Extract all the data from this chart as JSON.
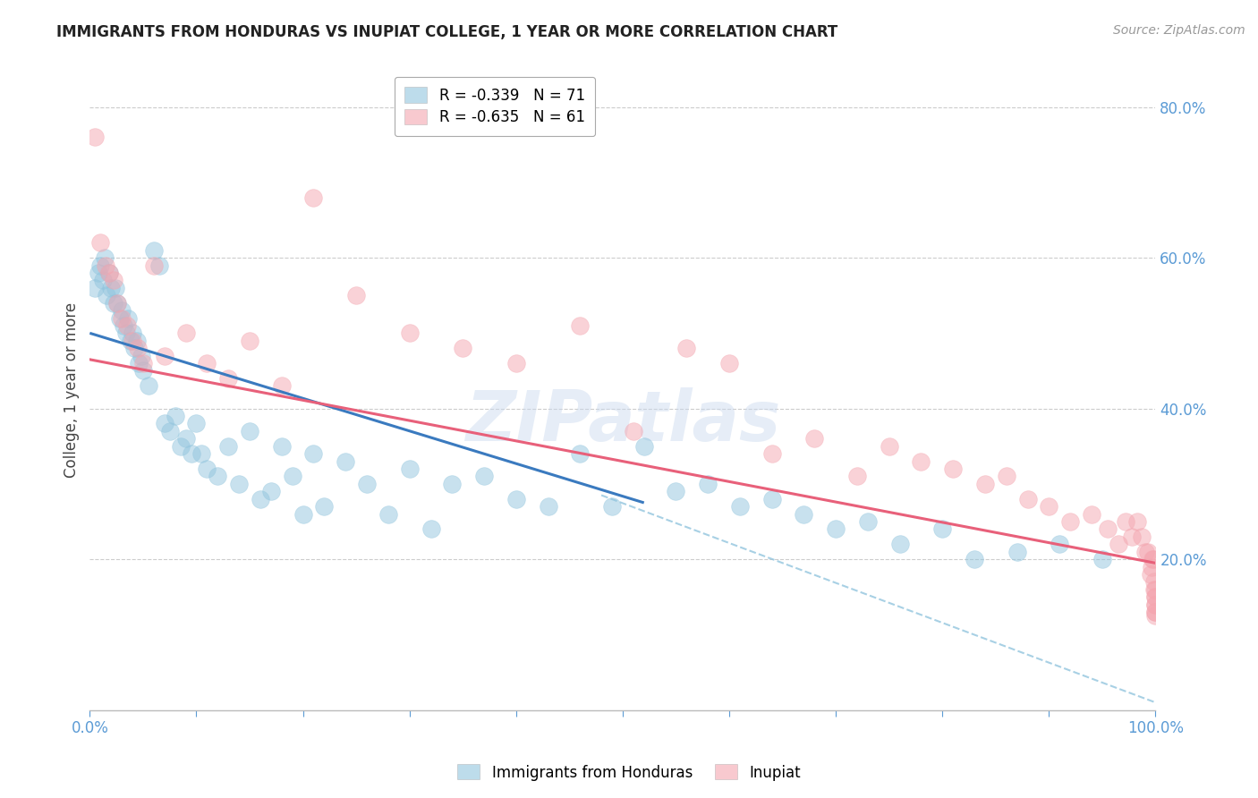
{
  "title": "IMMIGRANTS FROM HONDURAS VS INUPIAT COLLEGE, 1 YEAR OR MORE CORRELATION CHART",
  "source": "Source: ZipAtlas.com",
  "ylabel": "College, 1 year or more",
  "xlim": [
    0.0,
    1.0
  ],
  "ylim": [
    0.0,
    0.85
  ],
  "xtick_positions": [
    0.0,
    0.1,
    0.2,
    0.3,
    0.4,
    0.5,
    0.6,
    0.7,
    0.8,
    0.9,
    1.0
  ],
  "xtick_labels": [
    "0.0%",
    "",
    "",
    "",
    "",
    "",
    "",
    "",
    "",
    "",
    "100.0%"
  ],
  "ytick_positions": [
    0.2,
    0.4,
    0.6,
    0.8
  ],
  "ytick_labels": [
    "20.0%",
    "40.0%",
    "60.0%",
    "80.0%"
  ],
  "blue_color": "#92c5de",
  "pink_color": "#f4a6b0",
  "blue_line_color": "#3a7abf",
  "pink_line_color": "#e8607a",
  "dashed_line_color": "#92c5de",
  "legend_R1": "R = -0.339",
  "legend_N1": "N = 71",
  "legend_R2": "R = -0.635",
  "legend_N2": "N = 61",
  "legend_label1": "Immigrants from Honduras",
  "legend_label2": "Inupiat",
  "watermark": "ZIPatlas",
  "blue_line_x0": 0.0,
  "blue_line_x1": 0.52,
  "blue_line_y0": 0.5,
  "blue_line_y1": 0.275,
  "pink_line_x0": 0.0,
  "pink_line_x1": 1.0,
  "pink_line_y0": 0.465,
  "pink_line_y1": 0.195,
  "dash_line_x0": 0.48,
  "dash_line_x1": 1.0,
  "dash_line_y0": 0.285,
  "dash_line_y1": 0.01,
  "blue_x": [
    0.005,
    0.008,
    0.01,
    0.012,
    0.014,
    0.016,
    0.018,
    0.02,
    0.022,
    0.024,
    0.026,
    0.028,
    0.03,
    0.032,
    0.034,
    0.036,
    0.038,
    0.04,
    0.042,
    0.044,
    0.046,
    0.048,
    0.05,
    0.055,
    0.06,
    0.065,
    0.07,
    0.075,
    0.08,
    0.085,
    0.09,
    0.095,
    0.1,
    0.105,
    0.11,
    0.12,
    0.13,
    0.14,
    0.15,
    0.16,
    0.17,
    0.18,
    0.19,
    0.2,
    0.21,
    0.22,
    0.24,
    0.26,
    0.28,
    0.3,
    0.32,
    0.34,
    0.37,
    0.4,
    0.43,
    0.46,
    0.49,
    0.52,
    0.55,
    0.58,
    0.61,
    0.64,
    0.67,
    0.7,
    0.73,
    0.76,
    0.8,
    0.83,
    0.87,
    0.91,
    0.95
  ],
  "blue_y": [
    0.56,
    0.58,
    0.59,
    0.57,
    0.6,
    0.55,
    0.58,
    0.56,
    0.54,
    0.56,
    0.54,
    0.52,
    0.53,
    0.51,
    0.5,
    0.52,
    0.49,
    0.5,
    0.48,
    0.49,
    0.46,
    0.47,
    0.45,
    0.43,
    0.61,
    0.59,
    0.38,
    0.37,
    0.39,
    0.35,
    0.36,
    0.34,
    0.38,
    0.34,
    0.32,
    0.31,
    0.35,
    0.3,
    0.37,
    0.28,
    0.29,
    0.35,
    0.31,
    0.26,
    0.34,
    0.27,
    0.33,
    0.3,
    0.26,
    0.32,
    0.24,
    0.3,
    0.31,
    0.28,
    0.27,
    0.34,
    0.27,
    0.35,
    0.29,
    0.3,
    0.27,
    0.28,
    0.26,
    0.24,
    0.25,
    0.22,
    0.24,
    0.2,
    0.21,
    0.22,
    0.2
  ],
  "pink_x": [
    0.005,
    0.01,
    0.015,
    0.018,
    0.022,
    0.026,
    0.03,
    0.035,
    0.04,
    0.045,
    0.05,
    0.06,
    0.07,
    0.09,
    0.11,
    0.13,
    0.15,
    0.18,
    0.21,
    0.25,
    0.3,
    0.35,
    0.4,
    0.46,
    0.51,
    0.56,
    0.6,
    0.64,
    0.68,
    0.72,
    0.75,
    0.78,
    0.81,
    0.84,
    0.86,
    0.88,
    0.9,
    0.92,
    0.94,
    0.955,
    0.965,
    0.972,
    0.978,
    0.983,
    0.987,
    0.99,
    0.993,
    0.995,
    0.996,
    0.997,
    0.998,
    0.9985,
    0.999,
    0.9992,
    0.9994,
    0.9995,
    0.9996,
    0.9997,
    0.9998,
    0.9999,
    1.0
  ],
  "pink_y": [
    0.76,
    0.62,
    0.59,
    0.58,
    0.57,
    0.54,
    0.52,
    0.51,
    0.49,
    0.48,
    0.46,
    0.59,
    0.47,
    0.5,
    0.46,
    0.44,
    0.49,
    0.43,
    0.68,
    0.55,
    0.5,
    0.48,
    0.46,
    0.51,
    0.37,
    0.48,
    0.46,
    0.34,
    0.36,
    0.31,
    0.35,
    0.33,
    0.32,
    0.3,
    0.31,
    0.28,
    0.27,
    0.25,
    0.26,
    0.24,
    0.22,
    0.25,
    0.23,
    0.25,
    0.23,
    0.21,
    0.21,
    0.18,
    0.19,
    0.2,
    0.2,
    0.17,
    0.16,
    0.15,
    0.16,
    0.14,
    0.15,
    0.13,
    0.14,
    0.13,
    0.125
  ]
}
